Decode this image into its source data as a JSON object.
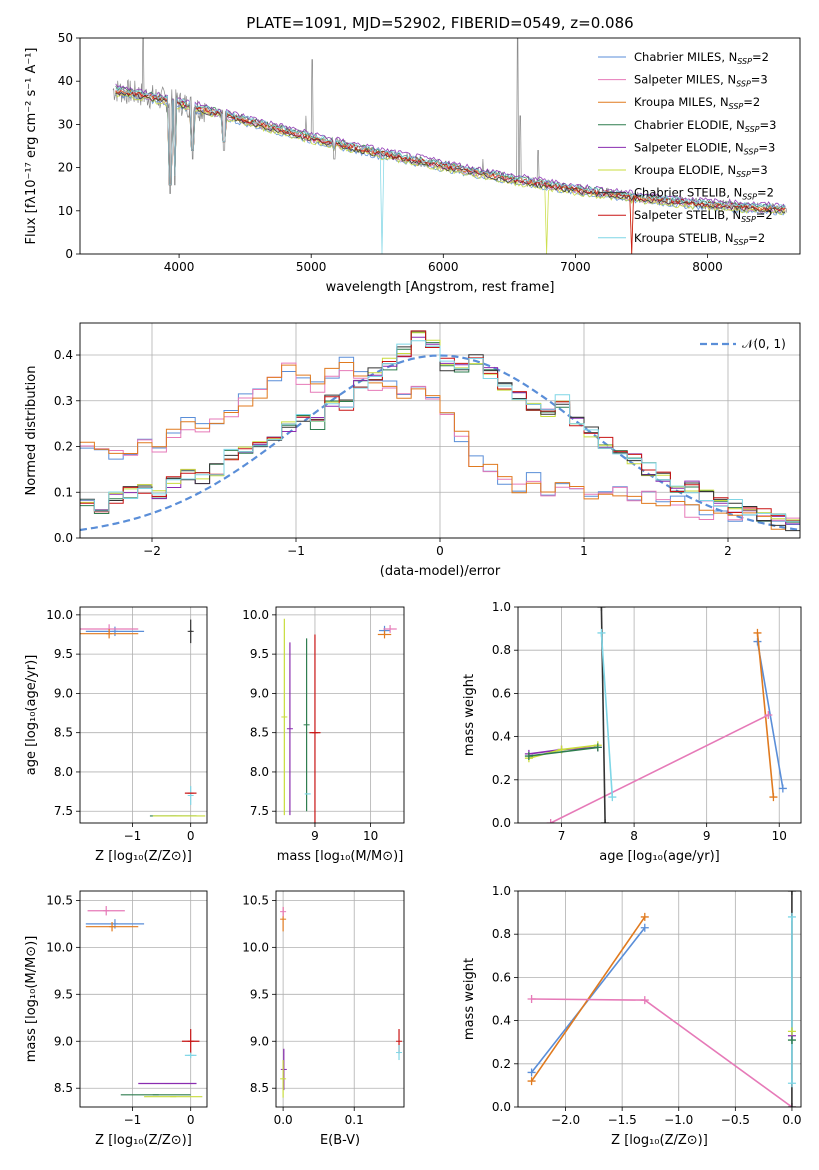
{
  "figure_title": "PLATE=1091, MJD=52902, FIBERID=0549, z=0.086",
  "models": [
    {
      "name": "Chabrier MILES",
      "nssp": "2",
      "color": "#5a8ed8"
    },
    {
      "name": "Salpeter MILES",
      "nssp": "3",
      "color": "#e67ab8"
    },
    {
      "name": "Kroupa MILES",
      "nssp": "2",
      "color": "#e07a1f"
    },
    {
      "name": "Chabrier ELODIE",
      "nssp": "3",
      "color": "#2e7d4f"
    },
    {
      "name": "Salpeter ELODIE",
      "nssp": "3",
      "color": "#8a2db0"
    },
    {
      "name": "Kroupa ELODIE",
      "nssp": "3",
      "color": "#c8dc3c"
    },
    {
      "name": "Chabrier STELIB",
      "nssp": "2",
      "color": "#333333"
    },
    {
      "name": "Salpeter STELIB",
      "nssp": "2",
      "color": "#c81414"
    },
    {
      "name": "Kroupa STELIB",
      "nssp": "2",
      "color": "#7fd6e6"
    }
  ],
  "chart_data": [
    {
      "id": "spectrum",
      "type": "line",
      "title": "PLATE=1091, MJD=52902, FIBERID=0549, z=0.086",
      "xlabel": "wavelength [Angstrom, rest frame]",
      "ylabel": "Flux [fλ10⁻¹⁷ erg cm⁻² s⁻¹ A⁻¹]",
      "xlim": [
        3250,
        8700
      ],
      "ylim": [
        0,
        50
      ],
      "xticks": [
        "4000",
        "5000",
        "6000",
        "7000",
        "8000"
      ],
      "yticks": [
        "0",
        "10",
        "20",
        "30",
        "40",
        "50"
      ],
      "data_series_name": "data",
      "data_color": "#888888",
      "continuum": {
        "x": [
          3500,
          3700,
          4000,
          4500,
          5000,
          5500,
          6000,
          6500,
          7000,
          7500,
          8000,
          8500,
          8600
        ],
        "y": [
          38,
          37,
          35,
          31,
          27,
          23.5,
          20.5,
          17.5,
          15,
          13,
          11.5,
          10.5,
          10.5
        ]
      },
      "emission_lines": [
        {
          "x": 3727,
          "y": 50
        },
        {
          "x": 4861,
          "y": 28
        },
        {
          "x": 4959,
          "y": 32
        },
        {
          "x": 5007,
          "y": 45
        },
        {
          "x": 6300,
          "y": 22
        },
        {
          "x": 6563,
          "y": 50
        },
        {
          "x": 6583,
          "y": 32
        },
        {
          "x": 6717,
          "y": 24
        }
      ],
      "absorption_lines": [
        {
          "x": 3934,
          "y": 14
        },
        {
          "x": 3969,
          "y": 16
        },
        {
          "x": 4102,
          "y": 22
        },
        {
          "x": 4340,
          "y": 24
        },
        {
          "x": 5175,
          "y": 22
        }
      ],
      "legend": "upper-right"
    },
    {
      "id": "residuals",
      "type": "line",
      "xlabel": "(data-model)/error",
      "ylabel": "Normed distribution",
      "xlim": [
        -2.5,
        2.5
      ],
      "ylim": [
        0,
        0.47
      ],
      "xticks": [
        "−2",
        "−1",
        "0",
        "1",
        "2"
      ],
      "yticks": [
        "0.0",
        "0.1",
        "0.2",
        "0.3",
        "0.4"
      ],
      "grid": true,
      "gaussian_label": "𝒩(0, 1)",
      "gaussian_color": "#5a8ed8",
      "bin_width": 0.1,
      "x_start": -2.5,
      "groups": [
        {
          "models": [
            0,
            1,
            2
          ],
          "values": [
            0.21,
            0.2,
            0.18,
            0.19,
            0.21,
            0.2,
            0.23,
            0.25,
            0.24,
            0.26,
            0.28,
            0.3,
            0.32,
            0.34,
            0.37,
            0.35,
            0.33,
            0.36,
            0.38,
            0.36,
            0.33,
            0.34,
            0.32,
            0.34,
            0.3,
            0.28,
            0.22,
            0.17,
            0.16,
            0.12,
            0.11,
            0.13,
            0.1,
            0.12,
            0.11,
            0.1,
            0.09,
            0.1,
            0.08,
            0.09,
            0.07,
            0.08,
            0.06,
            0.05,
            0.06,
            0.04,
            0.05,
            0.04,
            0.03,
            0.04
          ]
        },
        {
          "models": [
            3,
            4,
            5,
            6,
            7,
            8
          ],
          "values": [
            0.08,
            0.06,
            0.09,
            0.1,
            0.11,
            0.1,
            0.12,
            0.14,
            0.13,
            0.15,
            0.18,
            0.19,
            0.2,
            0.22,
            0.24,
            0.27,
            0.25,
            0.3,
            0.29,
            0.33,
            0.36,
            0.38,
            0.41,
            0.44,
            0.42,
            0.38,
            0.37,
            0.39,
            0.36,
            0.33,
            0.31,
            0.29,
            0.27,
            0.3,
            0.25,
            0.23,
            0.21,
            0.19,
            0.17,
            0.15,
            0.13,
            0.1,
            0.11,
            0.09,
            0.08,
            0.07,
            0.06,
            0.05,
            0.04,
            0.03
          ]
        }
      ]
    },
    {
      "id": "age-vs-Z",
      "type": "scatter",
      "xlabel": "Z [log₁₀(Z/Z⊙)]",
      "ylabel": "age  [log₁₀(age/yr)]",
      "xlim": [
        -1.9,
        0.28
      ],
      "ylim": [
        7.35,
        10.1
      ],
      "xticks": [
        "−1",
        "0"
      ],
      "yticks": [
        "7.5",
        "8.0",
        "8.5",
        "9.0",
        "9.5",
        "10.0"
      ],
      "grid": true,
      "points": [
        {
          "model": 0,
          "x": -1.3,
          "y": 9.79,
          "xerr": 0.5,
          "yerr": 0.06
        },
        {
          "model": 1,
          "x": -1.4,
          "y": 9.82,
          "xerr": 0.5,
          "yerr": 0.06
        },
        {
          "model": 2,
          "x": -1.4,
          "y": 9.76,
          "xerr": 0.5,
          "yerr": 0.06
        },
        {
          "model": 6,
          "x": 0.0,
          "y": 9.79,
          "xerr": 0.02,
          "yerr": 0.15
        },
        {
          "model": 8,
          "x": 0.0,
          "y": 7.7,
          "xerr": 0.0,
          "yerr": 0.12
        },
        {
          "model": 3,
          "x": -0.3,
          "y": 7.44,
          "xerr": 0.4,
          "yerr": 0.0
        },
        {
          "model": 5,
          "x": -0.2,
          "y": 7.44,
          "xerr": 0.45,
          "yerr": 0.0
        },
        {
          "model": 7,
          "x": 0.0,
          "y": 7.73,
          "xerr": 0.1,
          "yerr": 0.0
        }
      ]
    },
    {
      "id": "age-vs-mass",
      "type": "scatter",
      "xlabel": "mass [log₁₀(M/M⊙)]",
      "xlim": [
        8.3,
        10.6
      ],
      "ylim": [
        7.35,
        10.1
      ],
      "xticks": [
        "9",
        "10"
      ],
      "yticks": [
        "7.5",
        "8.0",
        "8.5",
        "9.0",
        "9.5",
        "10.0"
      ],
      "grid": true,
      "points": [
        {
          "model": 0,
          "x": 10.25,
          "y": 9.8,
          "xerr": 0.1,
          "yerr": 0.06
        },
        {
          "model": 1,
          "x": 10.35,
          "y": 9.82,
          "xerr": 0.12,
          "yerr": 0.05
        },
        {
          "model": 2,
          "x": 10.25,
          "y": 9.75,
          "xerr": 0.12,
          "yerr": 0.05
        },
        {
          "model": 5,
          "x": 8.45,
          "y": 8.7,
          "xerr": 0.0,
          "yerr": 1.25
        },
        {
          "model": 4,
          "x": 8.55,
          "y": 8.55,
          "xerr": 0.0,
          "yerr": 1.1
        },
        {
          "model": 3,
          "x": 8.85,
          "y": 8.6,
          "xerr": 0.0,
          "yerr": 1.1
        },
        {
          "model": 7,
          "x": 9.0,
          "y": 8.5,
          "xerr": 0.1,
          "yerr": 1.25
        },
        {
          "model": 8,
          "x": 8.87,
          "y": 7.72,
          "xerr": 0.05,
          "yerr": 0.0
        }
      ]
    },
    {
      "id": "weight-vs-age",
      "type": "line",
      "xlabel": "age  [log₁₀(age/yr)]",
      "ylabel": "mass weight",
      "xlim": [
        6.4,
        10.3
      ],
      "ylim": [
        0,
        1
      ],
      "xticks": [
        "7",
        "8",
        "9",
        "10"
      ],
      "yticks": [
        "0.0",
        "0.2",
        "0.4",
        "0.6",
        "0.8",
        "1.0"
      ],
      "grid": true,
      "series": [
        {
          "model": 0,
          "x": [
            9.7,
            10.05
          ],
          "y": [
            0.84,
            0.16
          ]
        },
        {
          "model": 2,
          "x": [
            9.7,
            9.92
          ],
          "y": [
            0.88,
            0.12
          ]
        },
        {
          "model": 1,
          "x": [
            6.85,
            9.85
          ],
          "y": [
            0.0,
            0.5
          ]
        },
        {
          "model": 4,
          "x": [
            6.55,
            7.0,
            7.5
          ],
          "y": [
            0.32,
            0.34,
            0.35
          ]
        },
        {
          "model": 5,
          "x": [
            6.55,
            7.0,
            7.5
          ],
          "y": [
            0.3,
            0.34,
            0.36
          ]
        },
        {
          "model": 3,
          "x": [
            6.55,
            7.5
          ],
          "y": [
            0.31,
            0.35
          ]
        },
        {
          "model": 6,
          "x": [
            7.55,
            7.6
          ],
          "y": [
            1.0,
            0.0
          ]
        },
        {
          "model": 8,
          "x": [
            7.55,
            7.7
          ],
          "y": [
            0.88,
            0.12
          ]
        }
      ]
    },
    {
      "id": "mass-vs-Z",
      "type": "scatter",
      "xlabel": "Z [log₁₀(Z/Z⊙)]",
      "ylabel": "mass [log₁₀(M/M⊙)]",
      "xlim": [
        -1.9,
        0.28
      ],
      "ylim": [
        8.3,
        10.6
      ],
      "xticks": [
        "−1",
        "0"
      ],
      "yticks": [
        "8.5",
        "9.0",
        "9.5",
        "10.0",
        "10.5"
      ],
      "grid": true,
      "points": [
        {
          "model": 1,
          "x": -1.45,
          "y": 10.39,
          "xerr": 0.32,
          "yerr": 0.05
        },
        {
          "model": 0,
          "x": -1.3,
          "y": 10.25,
          "xerr": 0.5,
          "yerr": 0.05
        },
        {
          "model": 2,
          "x": -1.35,
          "y": 10.22,
          "xerr": 0.45,
          "yerr": 0.05
        },
        {
          "model": 7,
          "x": 0.0,
          "y": 9.0,
          "xerr": 0.15,
          "yerr": 0.13
        },
        {
          "model": 8,
          "x": 0.0,
          "y": 8.85,
          "xerr": 0.1,
          "yerr": 0.03
        },
        {
          "model": 4,
          "x": -0.4,
          "y": 8.55,
          "xerr": 0.5,
          "yerr": 0.0
        },
        {
          "model": 3,
          "x": -0.6,
          "y": 8.43,
          "xerr": 0.6,
          "yerr": 0.0
        },
        {
          "model": 5,
          "x": -0.3,
          "y": 8.41,
          "xerr": 0.5,
          "yerr": 0.0
        }
      ]
    },
    {
      "id": "mass-vs-EBV",
      "type": "scatter",
      "xlabel": "E(B-V)",
      "xlim": [
        -0.01,
        0.17
      ],
      "ylim": [
        8.3,
        10.6
      ],
      "xticks": [
        "0.0",
        "0.1"
      ],
      "yticks": [
        "8.5",
        "9.0",
        "9.5",
        "10.0",
        "10.5"
      ],
      "grid": true,
      "points": [
        {
          "model": 2,
          "x": 0.0,
          "y": 10.3,
          "xerr": 0.0,
          "yerr": 0.13
        },
        {
          "model": 1,
          "x": 0.0,
          "y": 10.38,
          "xerr": 0.0,
          "yerr": 0.05
        },
        {
          "model": 4,
          "x": 0.001,
          "y": 8.7,
          "xerr": 0.0,
          "yerr": 0.22
        },
        {
          "model": 5,
          "x": 0.0,
          "y": 8.6,
          "xerr": 0.0,
          "yerr": 0.2
        },
        {
          "model": 7,
          "x": 0.163,
          "y": 9.0,
          "xerr": 0.0,
          "yerr": 0.13
        },
        {
          "model": 8,
          "x": 0.163,
          "y": 8.88,
          "xerr": 0.0,
          "yerr": 0.08
        }
      ]
    },
    {
      "id": "weight-vs-Z",
      "type": "line",
      "xlabel": "Z [log₁₀(Z/Z⊙)]",
      "ylabel": "mass weight",
      "xlim": [
        -2.42,
        0.08
      ],
      "ylim": [
        0,
        1
      ],
      "xticks": [
        "−2.0",
        "−1.5",
        "−1.0",
        "−0.5",
        "0.0"
      ],
      "yticks": [
        "0.0",
        "0.2",
        "0.4",
        "0.6",
        "0.8",
        "1.0"
      ],
      "grid": true,
      "series": [
        {
          "model": 0,
          "x": [
            -2.3,
            -1.3
          ],
          "y": [
            0.16,
            0.83
          ]
        },
        {
          "model": 2,
          "x": [
            -2.3,
            -1.3
          ],
          "y": [
            0.12,
            0.88
          ]
        },
        {
          "model": 1,
          "x": [
            -2.3,
            -1.3,
            0.0
          ],
          "y": [
            0.5,
            0.495,
            0.0
          ]
        },
        {
          "model": 6,
          "x": [
            0.0,
            0.0
          ],
          "y": [
            0.0,
            1.0
          ]
        },
        {
          "model": 8,
          "x": [
            0.0,
            0.0
          ],
          "y": [
            0.11,
            0.88
          ]
        },
        {
          "model": 4,
          "x": [
            0.0
          ],
          "y": [
            0.33
          ]
        },
        {
          "model": 5,
          "x": [
            0.0
          ],
          "y": [
            0.35
          ]
        },
        {
          "model": 3,
          "x": [
            0.0
          ],
          "y": [
            0.31
          ]
        }
      ]
    }
  ]
}
